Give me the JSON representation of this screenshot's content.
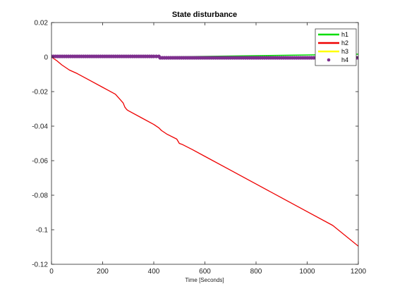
{
  "chart_data": {
    "type": "line",
    "title": "State disturbance",
    "xlabel": "Time [Seconds]",
    "ylabel": "",
    "xlim": [
      0,
      1200
    ],
    "ylim": [
      -0.12,
      0.02
    ],
    "xticks": [
      0,
      200,
      400,
      600,
      800,
      1000,
      1200
    ],
    "yticks": [
      0.02,
      0,
      -0.02,
      -0.04,
      -0.06,
      -0.08,
      -0.1,
      -0.12
    ],
    "xtick_labels": [
      "0",
      "200",
      "400",
      "600",
      "800",
      "1000",
      "1200"
    ],
    "ytick_labels": [
      "0.02",
      "0",
      "-0.02",
      "-0.04",
      "-0.06",
      "-0.08",
      "-0.1",
      "-0.12"
    ],
    "grid": false,
    "legend_position": "top-right",
    "series": [
      {
        "name": "h1",
        "color": "#00dd00",
        "style": "line",
        "x": [
          0,
          420,
          500,
          800,
          1000,
          1100,
          1200
        ],
        "y": [
          0.0,
          0.0,
          0.0002,
          0.0008,
          0.0012,
          0.0015,
          0.0017
        ]
      },
      {
        "name": "h2",
        "color": "#ee0000",
        "style": "line",
        "x": [
          0,
          20,
          40,
          70,
          100,
          150,
          200,
          250,
          280,
          287,
          295,
          300,
          350,
          400,
          420,
          430,
          450,
          490,
          500,
          510,
          550,
          600,
          700,
          800,
          900,
          1000,
          1100,
          1200
        ],
        "y": [
          0.0,
          -0.002,
          -0.0045,
          -0.0075,
          -0.0095,
          -0.0135,
          -0.0175,
          -0.0215,
          -0.0265,
          -0.029,
          -0.0305,
          -0.031,
          -0.035,
          -0.039,
          -0.041,
          -0.0425,
          -0.0445,
          -0.0475,
          -0.05,
          -0.0505,
          -0.0535,
          -0.0575,
          -0.0655,
          -0.0735,
          -0.0815,
          -0.0895,
          -0.0975,
          -0.1095
        ]
      },
      {
        "name": "h3",
        "color": "#ffff00",
        "style": "line",
        "x": [
          0,
          1200
        ],
        "y": [
          0.0,
          0.0
        ]
      },
      {
        "name": "h4",
        "color": "#7e2f8e",
        "style": "marker",
        "x": [
          0,
          100,
          200,
          300,
          400,
          420,
          425,
          500,
          600,
          700,
          800,
          900,
          1000,
          1100,
          1200
        ],
        "y": [
          0.0004,
          0.0004,
          0.0004,
          0.0004,
          0.0004,
          0.0004,
          -0.0004,
          -0.0004,
          -0.0004,
          -0.0004,
          -0.0004,
          -0.0004,
          -0.0004,
          -0.0004,
          -0.0004
        ]
      }
    ]
  }
}
